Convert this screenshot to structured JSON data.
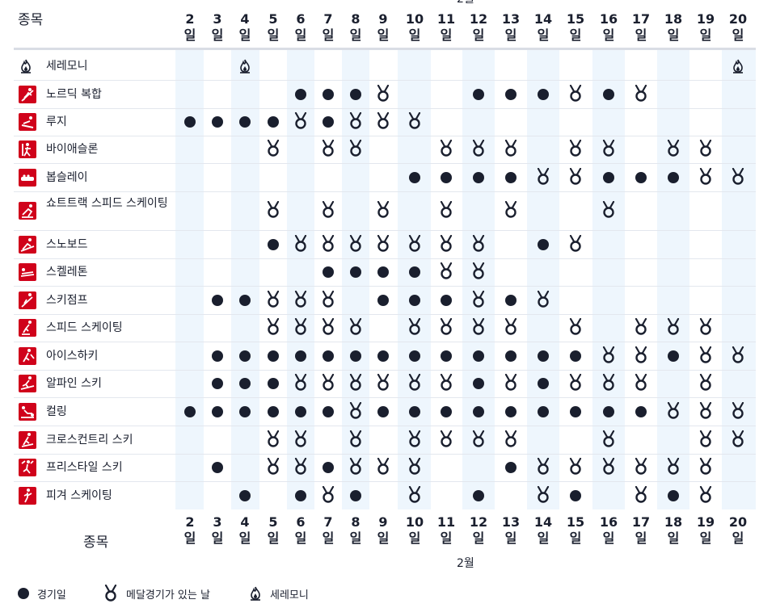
{
  "header": {
    "month_label": "2월",
    "sport_column_label": "종목",
    "day_suffix": "일",
    "days": [
      "2",
      "3",
      "4",
      "5",
      "6",
      "7",
      "8",
      "9",
      "10",
      "11",
      "12",
      "13",
      "14",
      "15",
      "16",
      "17",
      "18",
      "19",
      "20"
    ]
  },
  "footer": {
    "month_label": "2월"
  },
  "legend": {
    "competition_day": "경기일",
    "medal_day": "메달경기가 있는 날",
    "ceremony": "세레모니"
  },
  "sports": [
    {
      "name": "세레모니",
      "icon": "flame-icon",
      "schedule": [
        "",
        "",
        "C",
        "",
        "",
        "",
        "",
        "",
        "",
        "",
        "",
        "",
        "",
        "",
        "",
        "",
        "",
        "",
        "C"
      ]
    },
    {
      "name": "노르딕 복합",
      "icon": "nordic-combined-icon",
      "schedule": [
        "",
        "",
        "",
        "",
        "D",
        "D",
        "D",
        "M",
        "",
        "",
        "D",
        "D",
        "D",
        "M",
        "D",
        "M",
        "",
        "",
        ""
      ]
    },
    {
      "name": "루지",
      "icon": "luge-icon",
      "schedule": [
        "D",
        "D",
        "D",
        "D",
        "M",
        "D",
        "M",
        "M",
        "M",
        "",
        "",
        "",
        "",
        "",
        "",
        "",
        "",
        "",
        ""
      ]
    },
    {
      "name": "바이애슬론",
      "icon": "biathlon-icon",
      "schedule": [
        "",
        "",
        "",
        "M",
        "",
        "M",
        "M",
        "",
        "",
        "M",
        "M",
        "M",
        "",
        "M",
        "M",
        "",
        "M",
        "M",
        ""
      ]
    },
    {
      "name": "봅슬레이",
      "icon": "bobsleigh-icon",
      "schedule": [
        "",
        "",
        "",
        "",
        "",
        "",
        "",
        "",
        "D",
        "D",
        "D",
        "D",
        "M",
        "M",
        "D",
        "D",
        "D",
        "M",
        "M"
      ]
    },
    {
      "name": "쇼트트랙 스피드 스케이팅",
      "icon": "short-track-icon",
      "schedule": [
        "",
        "",
        "",
        "M",
        "",
        "M",
        "",
        "M",
        "",
        "M",
        "",
        "M",
        "",
        "",
        "M",
        "",
        "",
        "",
        ""
      ]
    },
    {
      "name": "스노보드",
      "icon": "snowboard-icon",
      "schedule": [
        "",
        "",
        "",
        "D",
        "M",
        "M",
        "M",
        "M",
        "M",
        "M",
        "M",
        "",
        "D",
        "M",
        "",
        "",
        "",
        "",
        ""
      ]
    },
    {
      "name": "스켈레톤",
      "icon": "skeleton-icon",
      "schedule": [
        "",
        "",
        "",
        "",
        "",
        "D",
        "D",
        "D",
        "D",
        "M",
        "M",
        "",
        "",
        "",
        "",
        "",
        "",
        "",
        ""
      ]
    },
    {
      "name": "스키점프",
      "icon": "ski-jumping-icon",
      "schedule": [
        "",
        "D",
        "D",
        "M",
        "M",
        "M",
        "",
        "D",
        "D",
        "D",
        "M",
        "D",
        "M",
        "",
        "",
        "",
        "",
        "",
        ""
      ]
    },
    {
      "name": "스피드 스케이팅",
      "icon": "speed-skating-icon",
      "schedule": [
        "",
        "",
        "",
        "M",
        "M",
        "M",
        "M",
        "",
        "M",
        "M",
        "M",
        "M",
        "",
        "M",
        "",
        "M",
        "M",
        "M",
        ""
      ]
    },
    {
      "name": "아이스하키",
      "icon": "ice-hockey-icon",
      "schedule": [
        "",
        "D",
        "D",
        "D",
        "D",
        "D",
        "D",
        "D",
        "D",
        "D",
        "D",
        "D",
        "D",
        "D",
        "M",
        "M",
        "D",
        "M",
        "M"
      ]
    },
    {
      "name": "알파인 스키",
      "icon": "alpine-skiing-icon",
      "schedule": [
        "",
        "D",
        "D",
        "D",
        "M",
        "M",
        "M",
        "M",
        "M",
        "M",
        "D",
        "M",
        "D",
        "M",
        "M",
        "M",
        "",
        "M",
        ""
      ]
    },
    {
      "name": "컬링",
      "icon": "curling-icon",
      "schedule": [
        "D",
        "D",
        "D",
        "D",
        "D",
        "D",
        "M",
        "D",
        "D",
        "D",
        "D",
        "D",
        "D",
        "D",
        "D",
        "D",
        "M",
        "M",
        "M"
      ]
    },
    {
      "name": "크로스컨트리 스키",
      "icon": "cross-country-icon",
      "schedule": [
        "",
        "",
        "",
        "M",
        "M",
        "",
        "M",
        "",
        "M",
        "M",
        "M",
        "M",
        "",
        "",
        "M",
        "",
        "",
        "M",
        "M"
      ]
    },
    {
      "name": "프리스타일 스키",
      "icon": "freestyle-skiing-icon",
      "schedule": [
        "",
        "D",
        "",
        "M",
        "M",
        "D",
        "M",
        "M",
        "M",
        "",
        "",
        "D",
        "M",
        "M",
        "M",
        "M",
        "M",
        "M",
        ""
      ]
    },
    {
      "name": "피겨 스케이팅",
      "icon": "figure-skating-icon",
      "schedule": [
        "",
        "",
        "D",
        "",
        "D",
        "M",
        "D",
        "",
        "M",
        "",
        "D",
        "",
        "M",
        "D",
        "",
        "M",
        "D",
        "M",
        ""
      ]
    }
  ],
  "colors": {
    "icon_red": "#d0021b",
    "column_shade": "#eef6fd",
    "marker_dark": "#1a1f2e"
  }
}
